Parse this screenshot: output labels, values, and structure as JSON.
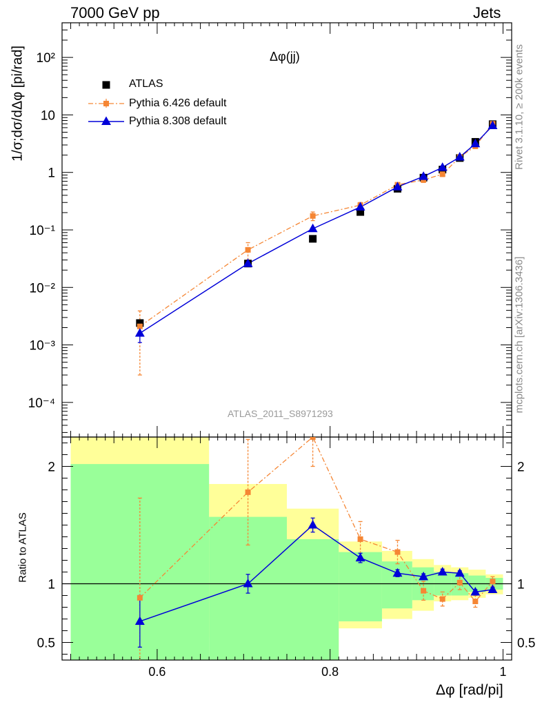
{
  "header": {
    "left": "7000 GeV pp",
    "right": "Jets"
  },
  "side_labels": {
    "rivet": "Rivet 3.1.10, ≥ 200k events",
    "mcplots": "mcplots.cern.ch [arXiv:1306.3436]"
  },
  "watermark": "ATLAS_2011_S8971293",
  "colors": {
    "atlas": "#000000",
    "pythia6": "#f58634",
    "pythia8": "#0000d8",
    "band_inner": "#99ff99",
    "band_outer": "#ffff99"
  },
  "chart_data": [
    {
      "type": "scatter",
      "title": "Δφ(jj)",
      "xlabel": "",
      "ylabel": "1/σ;dσ/dΔφ [pi/rad]",
      "yscale": "log",
      "xlim": [
        0.49,
        1.01
      ],
      "ylim": [
        2.5e-05,
        400
      ],
      "y_tick_labels": [
        "10⁻⁴",
        "10⁻³",
        "10⁻²",
        "10⁻¹",
        "1",
        "10",
        "10²"
      ],
      "legend": [
        "ATLAS",
        "Pythia 6.426 default",
        "Pythia 8.308 default"
      ],
      "legend_position": "top-left",
      "series": [
        {
          "name": "ATLAS",
          "x": [
            0.58,
            0.705,
            0.78,
            0.835,
            0.878,
            0.908,
            0.93,
            0.95,
            0.968,
            0.988
          ],
          "y": [
            0.0024,
            0.026,
            0.07,
            0.205,
            0.52,
            0.81,
            1.12,
            1.78,
            3.4,
            6.9
          ]
        },
        {
          "name": "Pythia 6.426 default",
          "x": [
            0.58,
            0.705,
            0.78,
            0.835,
            0.878,
            0.908,
            0.93,
            0.95,
            0.968,
            0.988
          ],
          "y": [
            0.0021,
            0.045,
            0.175,
            0.27,
            0.61,
            0.74,
            0.93,
            1.85,
            2.85,
            7.0
          ],
          "yerr": [
            0.0018,
            0.015,
            0.03,
            0.03,
            0.05,
            0.07,
            0.08,
            0.15,
            0.25,
            0.3
          ]
        },
        {
          "name": "Pythia 8.308 default",
          "x": [
            0.58,
            0.705,
            0.78,
            0.835,
            0.878,
            0.908,
            0.93,
            0.95,
            0.968,
            0.988
          ],
          "y": [
            0.0016,
            0.026,
            0.105,
            0.25,
            0.56,
            0.85,
            1.22,
            1.85,
            3.15,
            6.5
          ],
          "yerr": [
            0.0005,
            0.002,
            0.005,
            0.01,
            0.02,
            0.03,
            0.04,
            0.06,
            0.1,
            0.2
          ]
        }
      ]
    },
    {
      "type": "scatter",
      "title": "",
      "xlabel": "Δφ [rad/pi]",
      "ylabel": "Ratio to ATLAS",
      "xlim": [
        0.49,
        1.01
      ],
      "ylim": [
        0.35,
        2.25
      ],
      "x_tick_labels": [
        "0.6",
        "0.8",
        "1"
      ],
      "y_tick_labels": [
        "0.5",
        "1",
        "2"
      ],
      "bands": {
        "x_edges": [
          0.5,
          0.66,
          0.75,
          0.81,
          0.86,
          0.895,
          0.92,
          0.94,
          0.96,
          0.98,
          1.0
        ],
        "inner_low": [
          0.35,
          0.35,
          0.35,
          0.68,
          0.79,
          0.86,
          0.9,
          0.9,
          0.93,
          0.95
        ],
        "inner_high": [
          2.02,
          1.57,
          1.38,
          1.27,
          1.19,
          1.14,
          1.1,
          1.09,
          1.07,
          1.05
        ],
        "outer_low": [
          0.35,
          0.54,
          0.35,
          0.62,
          0.7,
          0.77,
          0.85,
          0.86,
          0.88,
          0.91
        ],
        "outer_high": [
          2.25,
          1.85,
          1.64,
          1.36,
          1.28,
          1.21,
          1.16,
          1.14,
          1.12,
          1.08
        ]
      },
      "series": [
        {
          "name": "Pythia 6.426 default",
          "x": [
            0.58,
            0.705,
            0.78,
            0.835,
            0.878,
            0.908,
            0.93,
            0.95,
            0.968,
            0.988
          ],
          "y": [
            0.88,
            1.78,
            2.25,
            1.38,
            1.27,
            0.94,
            0.87,
            1.01,
            0.85,
            1.02
          ],
          "yerr": [
            0.85,
            0.45,
            0.25,
            0.15,
            0.1,
            0.08,
            0.06,
            0.06,
            0.05,
            0.04
          ]
        },
        {
          "name": "Pythia 8.308 default",
          "x": [
            0.58,
            0.705,
            0.78,
            0.835,
            0.878,
            0.908,
            0.93,
            0.95,
            0.968,
            0.988
          ],
          "y": [
            0.68,
            1.0,
            1.5,
            1.22,
            1.09,
            1.06,
            1.1,
            1.09,
            0.93,
            0.95
          ],
          "yerr": [
            0.22,
            0.08,
            0.06,
            0.04,
            0.03,
            0.025,
            0.025,
            0.02,
            0.02,
            0.02
          ]
        }
      ]
    }
  ]
}
